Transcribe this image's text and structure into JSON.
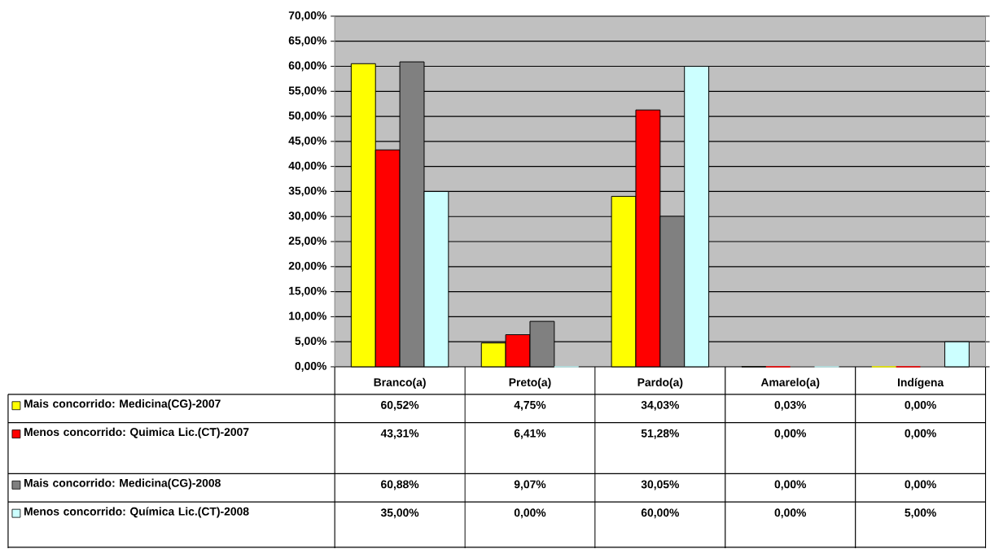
{
  "chart_data": {
    "type": "bar",
    "categories": [
      "Branco(a)",
      "Preto(a)",
      "Pardo(a)",
      "Amarelo(a)",
      "Indígena"
    ],
    "series": [
      {
        "name": "Mais concorrido: Medicina(CG)-2007",
        "color": "#ffff00",
        "values": [
          60.52,
          4.75,
          34.03,
          0.03,
          0.0
        ],
        "value_labels": [
          "60,52%",
          "4,75%",
          "34,03%",
          "0,03%",
          "0,00%"
        ]
      },
      {
        "name": "Menos concorrido: Quimica Lic.(CT)-2007",
        "color": "#ff0000",
        "values": [
          43.31,
          6.41,
          51.28,
          0.0,
          0.0
        ],
        "value_labels": [
          "43,31%",
          "6,41%",
          "51,28%",
          "0,00%",
          "0,00%"
        ]
      },
      {
        "name": "Mais concorrido: Medicina(CG)-2008",
        "color": "#808080",
        "values": [
          60.88,
          9.07,
          30.05,
          0.0,
          0.0
        ],
        "value_labels": [
          "60,88%",
          "9,07%",
          "30,05%",
          "0,00%",
          "0,00%"
        ]
      },
      {
        "name": "Menos concorrido: Química Lic.(CT)-2008",
        "color": "#ccffff",
        "values": [
          35.0,
          0.0,
          60.0,
          0.0,
          5.0
        ],
        "value_labels": [
          "35,00%",
          "0,00%",
          "60,00%",
          "0,00%",
          "5,00%"
        ]
      }
    ],
    "ylim": [
      0,
      70
    ],
    "yticks": [
      {
        "value": 0,
        "label": "0,00%"
      },
      {
        "value": 5,
        "label": "5,00%"
      },
      {
        "value": 10,
        "label": "10,00%"
      },
      {
        "value": 15,
        "label": "15,00%"
      },
      {
        "value": 20,
        "label": "20,00%"
      },
      {
        "value": 25,
        "label": "25,00%"
      },
      {
        "value": 30,
        "label": "30,00%"
      },
      {
        "value": 35,
        "label": "35,00%"
      },
      {
        "value": 40,
        "label": "40,00%"
      },
      {
        "value": 45,
        "label": "45,00%"
      },
      {
        "value": 50,
        "label": "50,00%"
      },
      {
        "value": 55,
        "label": "55,00%"
      },
      {
        "value": 60,
        "label": "60,00%"
      },
      {
        "value": 65,
        "label": "65,00%"
      },
      {
        "value": 70,
        "label": "70,00%"
      }
    ],
    "grid": "y",
    "legend": "bottom"
  }
}
